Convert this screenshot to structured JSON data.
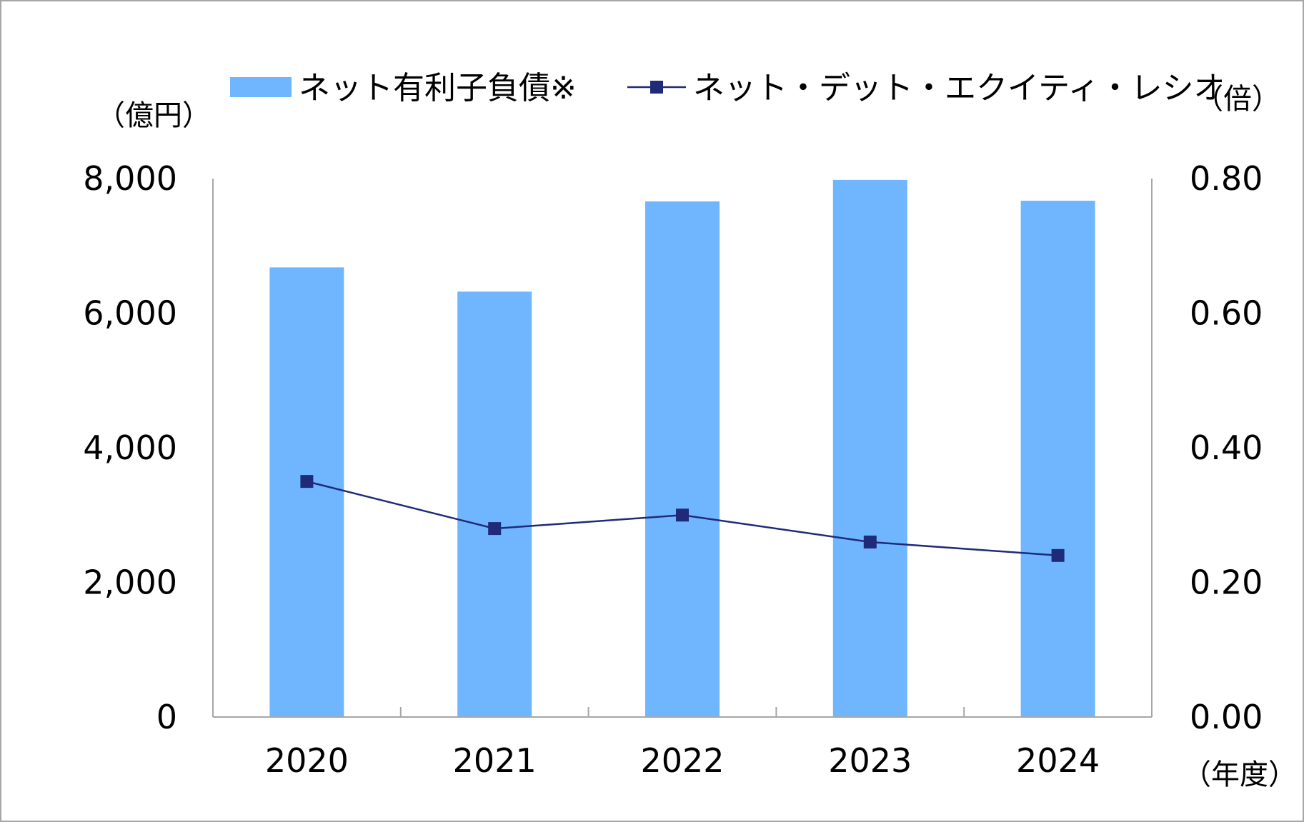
{
  "chart_data": {
    "type": "bar",
    "categories": [
      "2020",
      "2021",
      "2022",
      "2023",
      "2024"
    ],
    "series": [
      {
        "name": "ネット有利子負債※",
        "type": "bar",
        "axis": "left",
        "values": [
          6680,
          6320,
          7660,
          7980,
          7670
        ]
      },
      {
        "name": "ネット・デット・エクイティ・レシオ",
        "type": "line",
        "axis": "right",
        "marker": "square",
        "values": [
          0.35,
          0.28,
          0.3,
          0.26,
          0.24
        ]
      }
    ],
    "y_left": {
      "label": "（億円）",
      "ylim": [
        0,
        8000
      ],
      "ticks": [
        "0",
        "2,000",
        "4,000",
        "6,000",
        "8,000"
      ]
    },
    "y_right": {
      "label": "（倍）",
      "ylim": [
        0,
        0.8
      ],
      "ticks": [
        "0.00",
        "0.20",
        "0.40",
        "0.60",
        "0.80"
      ]
    },
    "x_unit_label": "（年度）",
    "legend_position": "top",
    "grid": false,
    "colors": {
      "bar": "#6FB6FF",
      "line": "#1F2A78",
      "axis": "#A6A6A6",
      "frame": "#A6A6A6"
    }
  }
}
